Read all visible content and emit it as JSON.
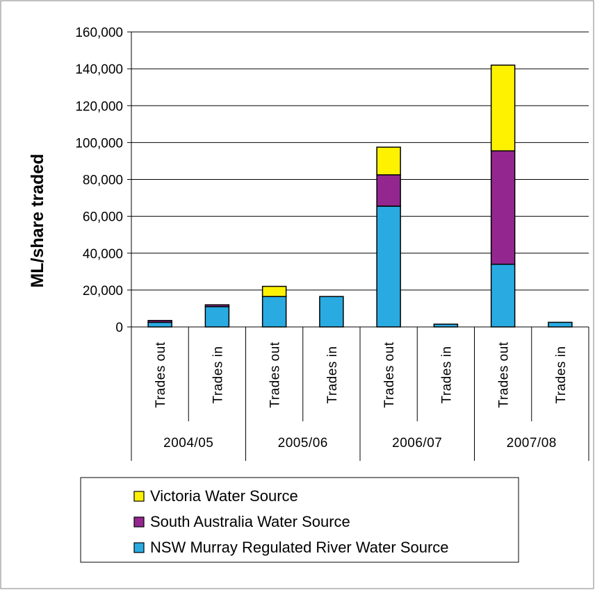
{
  "chart_data": {
    "type": "bar",
    "stacked": true,
    "ylabel": "ML/share traded",
    "ylim": [
      0,
      160000
    ],
    "y_ticks": [
      0,
      20000,
      40000,
      60000,
      80000,
      100000,
      120000,
      140000,
      160000
    ],
    "y_tick_labels": [
      "0",
      "20,000",
      "40,000",
      "60,000",
      "80,000",
      "100,000",
      "120,000",
      "140,000",
      "160,000"
    ],
    "grid": true,
    "legend_position": "bottom",
    "categories": [
      "Trades out",
      "Trades in",
      "Trades out",
      "Trades in",
      "Trades out",
      "Trades in",
      "Trades out",
      "Trades in"
    ],
    "groups": [
      {
        "label": "2004/05",
        "span": 2
      },
      {
        "label": "2005/06",
        "span": 2
      },
      {
        "label": "2006/07",
        "span": 2
      },
      {
        "label": "2007/08",
        "span": 2
      }
    ],
    "series": [
      {
        "name": "NSW Murray Regulated River Water Source",
        "color": "#29ABE2",
        "values": [
          2500,
          11000,
          16500,
          16500,
          65500,
          1500,
          34000,
          2500
        ]
      },
      {
        "name": "South Australia Water Source",
        "color": "#93278F",
        "values": [
          1000,
          1000,
          0,
          0,
          17000,
          0,
          61500,
          0
        ]
      },
      {
        "name": "Victoria Water Source",
        "color": "#FFF200",
        "values": [
          0,
          0,
          5500,
          0,
          15000,
          0,
          46500,
          0
        ]
      }
    ],
    "legend_order": [
      "Victoria Water Source",
      "South Australia Water Source",
      "NSW Murray Regulated River Water Source"
    ]
  }
}
